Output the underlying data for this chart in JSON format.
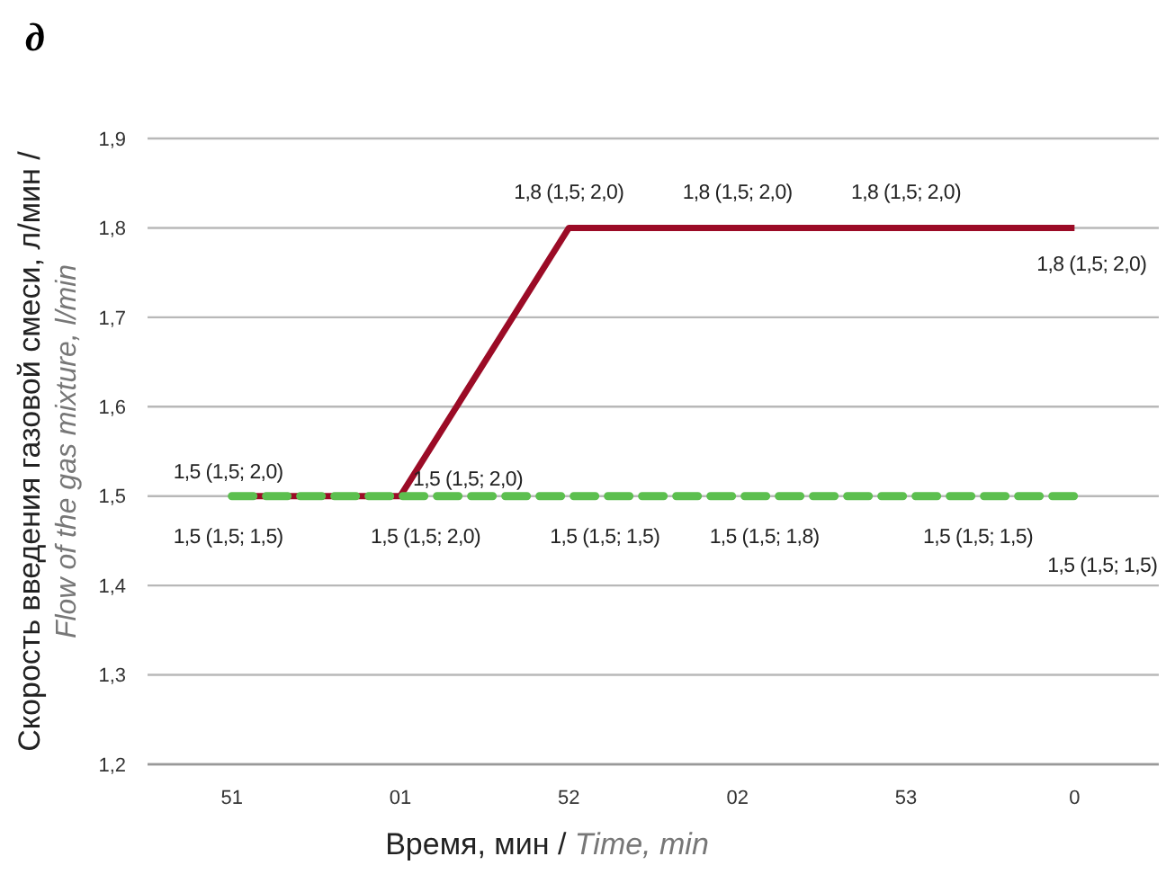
{
  "chart_data": {
    "type": "line",
    "title": "д",
    "xlabel": "Время, мин / Time, min",
    "ylabel": "Скорость введения газовой смеси, л/мин / Flow of the gas mixture, l/min",
    "categories": [
      "51",
      "01",
      "52",
      "02",
      "53",
      "0"
    ],
    "series": [
      {
        "color": "#9b0b26",
        "values": [
          1.5,
          1.5,
          1.8,
          1.8,
          1.8,
          1.8
        ],
        "line_style": "solid",
        "value_labels": [
          "1,5 (1,5; 2,0)",
          "1,5 (1,5; 2,0)",
          "1,8 (1,5; 2,0)",
          "1,8 (1,5; 2,0)",
          "1,8 (1,5; 2,0)",
          "1,8 (1,5; 2,0)"
        ]
      },
      {
        "color": "#5cbf4f",
        "values": [
          1.5,
          1.5,
          1.5,
          1.5,
          1.5,
          1.5
        ],
        "line_style": "dashed",
        "value_labels": [
          "1,5 (1,5; 1,5)",
          "1,5 (1,5; 2,0)",
          "1,5 (1,5; 1,5)",
          "1,5 (1,5; 1,8)",
          "1,5 (1,5; 1,5)",
          "1,5 (1,5; 1,5)"
        ]
      }
    ],
    "ylim": [
      1.2,
      1.9
    ],
    "yticks": [
      {
        "value": 1.2,
        "label": "1,2"
      },
      {
        "value": 1.3,
        "label": "1,3"
      },
      {
        "value": 1.4,
        "label": "1,4"
      },
      {
        "value": 1.5,
        "label": "1,5"
      },
      {
        "value": 1.6,
        "label": "1,6"
      },
      {
        "value": 1.7,
        "label": "1,7"
      },
      {
        "value": 1.8,
        "label": "1,8"
      },
      {
        "value": 1.9,
        "label": "1,9"
      }
    ],
    "grid": "y",
    "marker": "none"
  }
}
